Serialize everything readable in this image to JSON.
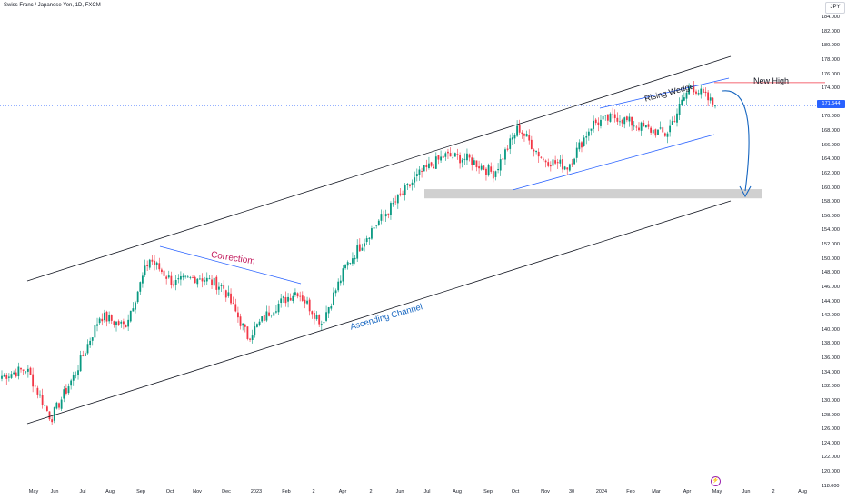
{
  "header": {
    "title": "Swiss Franc / Japanese Yen, 1D, FXCM"
  },
  "axis": {
    "currency": "JPY",
    "current_price": "171.544",
    "y_labels": [
      "184.000",
      "182.000",
      "180.000",
      "178.000",
      "176.000",
      "174.000",
      "172.000",
      "170.000",
      "168.000",
      "166.000",
      "164.000",
      "162.000",
      "160.000",
      "158.000",
      "156.000",
      "154.000",
      "152.000",
      "150.000",
      "148.000",
      "146.000",
      "144.000",
      "142.000",
      "140.000",
      "138.000",
      "136.000",
      "134.000",
      "132.000",
      "130.000",
      "128.000",
      "126.000",
      "124.000",
      "122.000",
      "120.000",
      "118.000"
    ],
    "x_labels": [
      "May",
      "Jun",
      "Jul",
      "Aug",
      "Sep",
      "Oct",
      "Nov",
      "Dec",
      "2023",
      "Feb",
      "2",
      "Apr",
      "2",
      "Jun",
      "Jul",
      "Aug",
      "Sep",
      "Oct",
      "Nov",
      "30",
      "2024",
      "Feb",
      "Mar",
      "Apr",
      "May",
      "Jun",
      "2",
      "Aug"
    ]
  },
  "annotations": {
    "correction": "Correctiom",
    "rising_wedge": "Rising Wedge",
    "ascending_channel": "Ascending Channel",
    "new_high": "New High"
  },
  "colors": {
    "up": "#089981",
    "down": "#f23645",
    "channel": "#131722",
    "wedge": "#2962ff",
    "zone": "#c8c8c8",
    "price_line": "#2962ff",
    "arrow": "#1565c0",
    "new_high_line": "#f23645"
  },
  "events_icon": "lightning-icon",
  "chart_data": {
    "type": "candlestick",
    "title": "Swiss Franc / Japanese Yen, 1D, FXCM",
    "ylim": [
      118,
      185
    ],
    "y_scale": "linear",
    "grid": false,
    "series": [
      {
        "name": "CHFJPY",
        "points": [
          [
            "Apr 2022",
            133.5
          ],
          [
            "early May 2022",
            134.5
          ],
          [
            "mid May 2022",
            127.5
          ],
          [
            "Jun 2022",
            134.0
          ],
          [
            "Jul 2022",
            142.0
          ],
          [
            "Aug 2022",
            140.5
          ],
          [
            "mid Sep 2022",
            150.0
          ],
          [
            "Oct 2022",
            146.5
          ],
          [
            "Nov 2022",
            147.5
          ],
          [
            "Dec 2022",
            146.0
          ],
          [
            "Jan 2023",
            139.0
          ],
          [
            "Feb 2023",
            143.0
          ],
          [
            "Mar 2023",
            145.5
          ],
          [
            "end Mar 2023",
            141.0
          ],
          [
            "Apr 2023",
            149.0
          ],
          [
            "May 2023",
            154.0
          ],
          [
            "Jun 2023",
            158.0
          ],
          [
            "Jul 2023",
            162.0
          ],
          [
            "Aug 2023",
            164.5
          ],
          [
            "Sep 2023",
            164.0
          ],
          [
            "Oct 2023",
            162.0
          ],
          [
            "Nov 2023",
            168.5
          ],
          [
            "end Nov 2023",
            164.0
          ],
          [
            "Dec 2023",
            163.0
          ],
          [
            "Jan 2024",
            169.0
          ],
          [
            "Feb 2024",
            170.0
          ],
          [
            "Mar 2024",
            168.5
          ],
          [
            "Apr 2024",
            167.5
          ],
          [
            "end Apr 2024",
            174.5
          ],
          [
            "May 2024",
            171.544
          ]
        ]
      }
    ],
    "levels": {
      "support_zone": [
        158.5,
        159.8
      ],
      "new_high": 174.8
    }
  }
}
